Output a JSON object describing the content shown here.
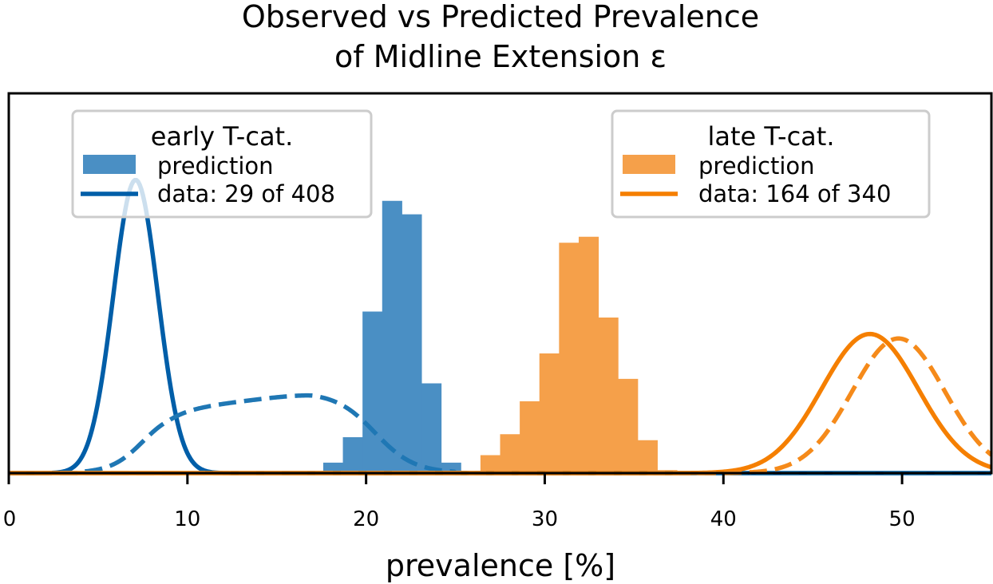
{
  "chart_data": {
    "type": "histogram+line",
    "title_line1": "Observed vs Predicted Prevalence",
    "title_line2": "of Midline Extension ε",
    "xlabel": "prevalence [%]",
    "ylabel": "",
    "xlim": [
      0,
      55
    ],
    "ylim": [
      0,
      1
    ],
    "xticks": [
      0,
      10,
      20,
      30,
      40,
      50
    ],
    "xtick_labels": [
      "0",
      "10",
      "20",
      "30",
      "40",
      "50"
    ],
    "grid": false,
    "colors": {
      "early_dark": "#005ea8",
      "early_hist": "#4a8fc4",
      "early_dashed": "#1f77b4",
      "late_dark": "#f57f00",
      "late_hist": "#f5a04a",
      "late_dashed": "#f58a1a"
    },
    "legends": [
      {
        "position": "top-left",
        "title": "early T-cat.",
        "entries": [
          {
            "label": "prediction",
            "kind": "patch"
          },
          {
            "label": "data: 29 of 408",
            "kind": "line"
          }
        ]
      },
      {
        "position": "top-right",
        "title": "late T-cat.",
        "entries": [
          {
            "label": "prediction",
            "kind": "patch"
          },
          {
            "label": "data: 164 of 340",
            "kind": "line"
          }
        ]
      }
    ],
    "histograms": [
      {
        "name": "early prediction",
        "bin_width": 1.1,
        "bins_start": [
          17.6,
          18.7,
          19.8,
          20.9,
          22.0,
          23.1,
          24.2
        ],
        "values": [
          0.035,
          0.12,
          0.54,
          0.91,
          0.865,
          0.3,
          0.035
        ]
      },
      {
        "name": "late prediction",
        "bin_width": 1.1,
        "bins_start": [
          26.4,
          27.5,
          28.6,
          29.7,
          30.8,
          31.9,
          33.0,
          34.1,
          35.2,
          36.3
        ],
        "values": [
          0.06,
          0.13,
          0.24,
          0.4,
          0.77,
          0.79,
          0.52,
          0.315,
          0.11,
          0.01
        ]
      }
    ],
    "curves": [
      {
        "name": "early data",
        "style": "solid",
        "mean": 7.1,
        "sd": 1.25,
        "peak": 0.98
      },
      {
        "name": "early predicted beta",
        "style": "dashed",
        "x_range": [
          4,
          25
        ],
        "peak": 0.27
      },
      {
        "name": "late data",
        "style": "solid",
        "mean": 48.2,
        "sd": 2.7,
        "peak": 0.465
      },
      {
        "name": "late predicted beta",
        "style": "dashed",
        "mean": 49.8,
        "sd": 2.6,
        "peak": 0.45
      }
    ]
  }
}
